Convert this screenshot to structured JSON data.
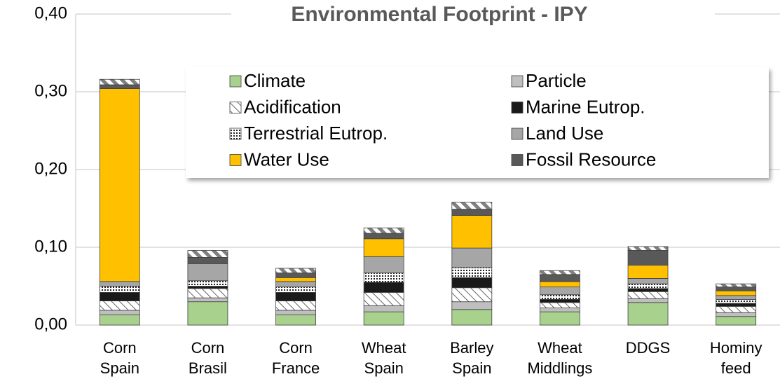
{
  "chart_data": {
    "type": "stacked_bar",
    "title": "Environmental Footprint - IPY",
    "categories": [
      "Corn Spain",
      "Corn Brasil",
      "Corn France",
      "Wheat Spain",
      "Barley Spain",
      "Wheat Middlings",
      "DDGS",
      "Hominy feed"
    ],
    "series": [
      {
        "name": "Climate",
        "color": "#a9d18e",
        "values": [
          0.013,
          0.03,
          0.013,
          0.017,
          0.02,
          0.017,
          0.029,
          0.011
        ]
      },
      {
        "name": "Particle",
        "color": "#bfbfbf",
        "values": [
          0.006,
          0.005,
          0.006,
          0.008,
          0.01,
          0.005,
          0.005,
          0.005
        ]
      },
      {
        "name": "Acidification",
        "color": "#ffffff",
        "pattern": "hatch",
        "values": [
          0.012,
          0.012,
          0.012,
          0.017,
          0.018,
          0.007,
          0.009,
          0.008
        ]
      },
      {
        "name": "Marine Eutrop.",
        "color": "#1a1a1a",
        "values": [
          0.011,
          0.003,
          0.011,
          0.013,
          0.013,
          0.004,
          0.004,
          0.004
        ]
      },
      {
        "name": "Terrestrial Eutrop.",
        "color": "#ffffff",
        "pattern": "dots",
        "values": [
          0.008,
          0.007,
          0.007,
          0.012,
          0.013,
          0.006,
          0.006,
          0.005
        ]
      },
      {
        "name": "Land Use",
        "color": "#a6a6a6",
        "values": [
          0.006,
          0.022,
          0.007,
          0.021,
          0.025,
          0.01,
          0.007,
          0.005
        ]
      },
      {
        "name": "Water Use",
        "color": "#ffc000",
        "values": [
          0.248,
          0.0,
          0.005,
          0.023,
          0.042,
          0.007,
          0.017,
          0.006
        ]
      },
      {
        "name": "Fossil Resource",
        "color": "#595959",
        "values": [
          0.005,
          0.008,
          0.006,
          0.007,
          0.008,
          0.009,
          0.019,
          0.005
        ]
      },
      {
        "name": null,
        "color": "#ffffff",
        "pattern": "stripes",
        "values": [
          0.007,
          0.009,
          0.006,
          0.007,
          0.009,
          0.005,
          0.005,
          0.004
        ]
      }
    ],
    "ylim": [
      0,
      0.4
    ],
    "yticks": [
      {
        "value": 0,
        "label": "0,00"
      },
      {
        "value": 0.1,
        "label": "0,10"
      },
      {
        "value": 0.2,
        "label": "0,20"
      },
      {
        "value": 0.3,
        "label": "0,30"
      },
      {
        "value": 0.4,
        "label": "0,40"
      }
    ],
    "grid": true
  }
}
